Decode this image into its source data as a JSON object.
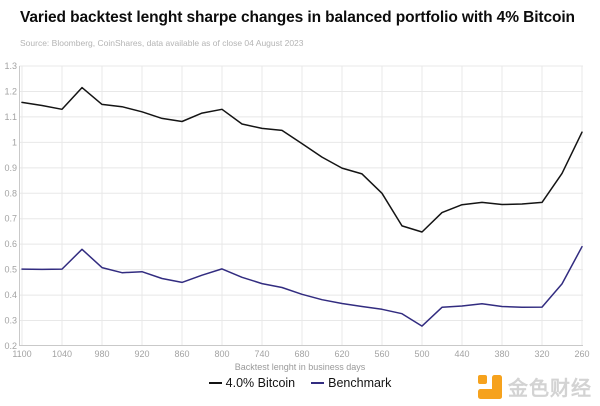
{
  "header": {
    "title": "Varied backtest lenght sharpe changes in balanced portfolio with 4% Bitcoin",
    "source": "Source: Bloomberg, CoinShares, data available as of close 04 August 2023"
  },
  "chart_data": {
    "type": "line",
    "title": "Varied backtest lenght sharpe changes in balanced portfolio with 4% Bitcoin",
    "xlabel": "Backtest lenght in business days",
    "ylabel": "",
    "xlim": [
      1100,
      260
    ],
    "ylim": [
      0.2,
      1.3
    ],
    "x_reversed": true,
    "grid": true,
    "legend_position": "bottom-center",
    "x_ticks": [
      "1100",
      "1040",
      "980",
      "920",
      "860",
      "800",
      "740",
      "680",
      "620",
      "560",
      "500",
      "440",
      "380",
      "320",
      "260"
    ],
    "y_ticks": [
      "1.3",
      "1.2",
      "1.1",
      "1",
      "0.9",
      "0.8",
      "0.7",
      "0.6",
      "0.5",
      "0.4",
      "0.3",
      "0.2"
    ],
    "x": [
      1100,
      1070,
      1040,
      1010,
      980,
      950,
      920,
      890,
      860,
      830,
      800,
      770,
      740,
      710,
      680,
      650,
      620,
      590,
      560,
      530,
      500,
      470,
      440,
      410,
      380,
      350,
      320,
      290,
      260
    ],
    "series": [
      {
        "name": "4.0% Bitcoin",
        "color": "#141414",
        "values": [
          1.157,
          1.145,
          1.13,
          1.215,
          1.149,
          1.14,
          1.12,
          1.094,
          1.082,
          1.115,
          1.13,
          1.072,
          1.055,
          1.047,
          0.995,
          0.942,
          0.899,
          0.876,
          0.8,
          0.672,
          0.648,
          0.724,
          0.755,
          0.764,
          0.756,
          0.758,
          0.764,
          0.878,
          1.04
        ]
      },
      {
        "name": "Benchmark",
        "color": "#322c80",
        "values": [
          0.502,
          0.501,
          0.502,
          0.58,
          0.508,
          0.488,
          0.492,
          0.465,
          0.45,
          0.478,
          0.503,
          0.47,
          0.445,
          0.43,
          0.403,
          0.382,
          0.367,
          0.355,
          0.344,
          0.327,
          0.278,
          0.352,
          0.357,
          0.366,
          0.355,
          0.352,
          0.353,
          0.444,
          0.59
        ]
      }
    ]
  },
  "footer": {
    "logo_text": "金色财经",
    "logo_color": "#f6a21d"
  }
}
